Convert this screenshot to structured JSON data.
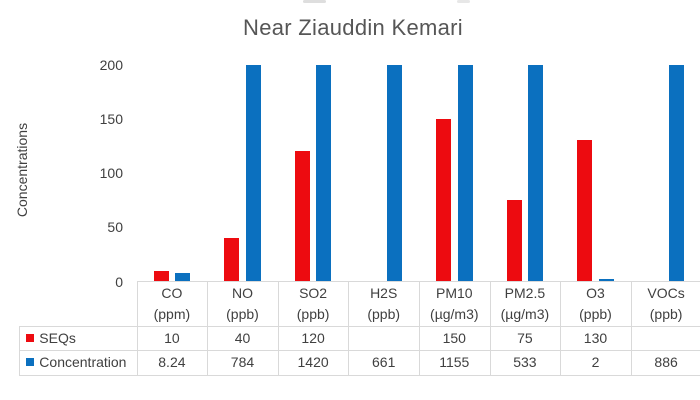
{
  "chart_data": {
    "type": "bar",
    "title": "Near Ziauddin Kemari",
    "xlabel": "",
    "ylabel": "Concentrations",
    "ylim": [
      0,
      200
    ],
    "yticks": [
      0,
      50,
      100,
      150,
      200
    ],
    "grid": false,
    "bars_clipped_at_ymax": true,
    "legend_position": "data-table-row-labels",
    "categories": [
      "CO",
      "NO",
      "SO2",
      "H2S",
      "PM10",
      "PM2.5",
      "O3",
      "VOCs"
    ],
    "category_units": [
      "(ppm)",
      "(ppb)",
      "(ppb)",
      "(ppb)",
      "(µg/m3)",
      "(µg/m3)",
      "(ppb)",
      "(ppb)"
    ],
    "series": [
      {
        "name": "SEQs",
        "color": "#ed0b10",
        "values": [
          10,
          40,
          120,
          null,
          150,
          75,
          130,
          null
        ]
      },
      {
        "name": "Concentration",
        "color": "#0b70bf",
        "values": [
          8.24,
          784,
          1420,
          661,
          1155,
          533,
          2,
          886
        ]
      }
    ]
  },
  "colors": {
    "background": "#ffffff",
    "table_border": "#d9d9d9",
    "text": "#404040",
    "title_text": "#565656"
  }
}
